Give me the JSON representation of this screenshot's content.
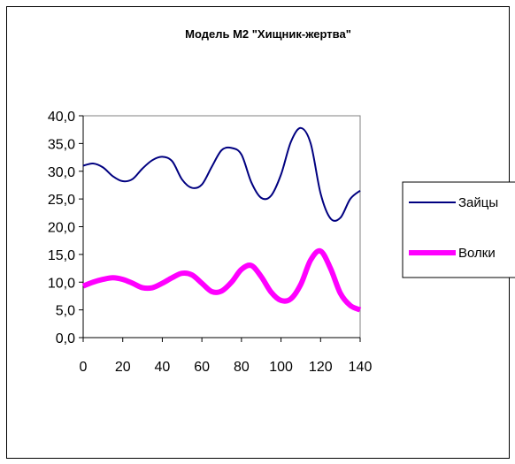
{
  "chart_data": {
    "type": "line",
    "title": "Модель М2 \"Хищник-жертва\"",
    "xlabel": "",
    "ylabel": "",
    "xlim": [
      0,
      140
    ],
    "ylim": [
      0,
      40
    ],
    "x_ticks": [
      "0",
      "20",
      "40",
      "60",
      "80",
      "100",
      "120",
      "140"
    ],
    "y_ticks": [
      "0,0",
      "5,0",
      "10,0",
      "15,0",
      "20,0",
      "25,0",
      "30,0",
      "35,0",
      "40,0"
    ],
    "grid": false,
    "legend_position": "right",
    "series": [
      {
        "name": "Зайцы",
        "color": "#000080",
        "x": [
          0,
          5,
          10,
          15,
          20,
          25,
          30,
          35,
          40,
          45,
          50,
          55,
          60,
          65,
          70,
          75,
          80,
          85,
          90,
          95,
          100,
          105,
          110,
          115,
          120,
          125,
          130,
          135,
          140
        ],
        "values": [
          31.0,
          31.4,
          30.7,
          29.1,
          28.2,
          28.6,
          30.5,
          32.0,
          32.6,
          31.8,
          28.5,
          27.0,
          27.6,
          30.8,
          33.8,
          34.2,
          33.0,
          28.0,
          25.2,
          25.6,
          29.4,
          35.3,
          37.8,
          35.0,
          26.0,
          21.5,
          21.6,
          25.0,
          26.5
        ]
      },
      {
        "name": "Волки",
        "color": "#ff00ff",
        "x": [
          0,
          5,
          10,
          15,
          20,
          25,
          30,
          35,
          40,
          45,
          50,
          55,
          60,
          65,
          70,
          75,
          80,
          85,
          90,
          95,
          100,
          105,
          110,
          115,
          120,
          125,
          130,
          135,
          140
        ],
        "values": [
          9.3,
          10.0,
          10.5,
          10.8,
          10.5,
          9.8,
          9.0,
          9.0,
          9.8,
          10.8,
          11.6,
          11.3,
          9.8,
          8.3,
          8.4,
          10.0,
          12.3,
          13.0,
          11.0,
          8.2,
          6.7,
          7.0,
          9.6,
          14.0,
          15.6,
          12.5,
          8.0,
          5.8,
          5.0
        ]
      }
    ]
  }
}
